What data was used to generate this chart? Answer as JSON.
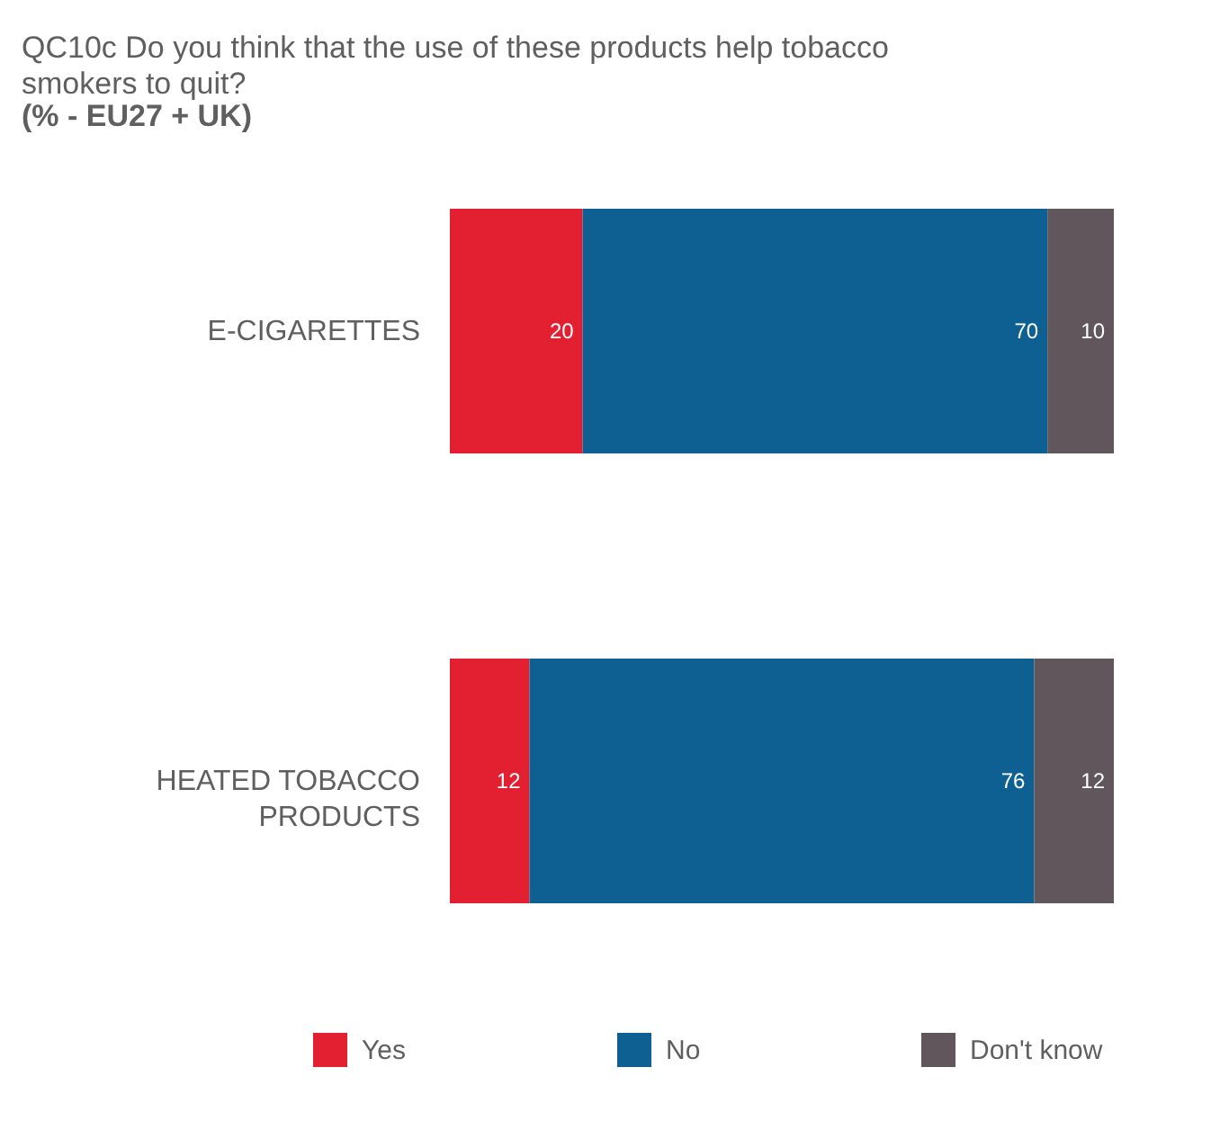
{
  "chart_data": {
    "type": "bar",
    "orientation": "horizontal",
    "stacked": true,
    "title": "QC10c Do you think that the use of these products help tobacco smokers to quit?",
    "subtitle": "(% - EU27 + UK)",
    "categories": [
      "E-CIGARETTES",
      "HEATED TOBACCO PRODUCTS"
    ],
    "series": [
      {
        "name": "Yes",
        "color": "#e32032",
        "values": [
          20,
          12
        ]
      },
      {
        "name": "No",
        "color": "#0e6092",
        "values": [
          70,
          76
        ]
      },
      {
        "name": "Don't know",
        "color": "#60565b",
        "values": [
          10,
          12
        ]
      }
    ],
    "data_labels": true,
    "legend": "bottom",
    "tick_labels": "y"
  }
}
